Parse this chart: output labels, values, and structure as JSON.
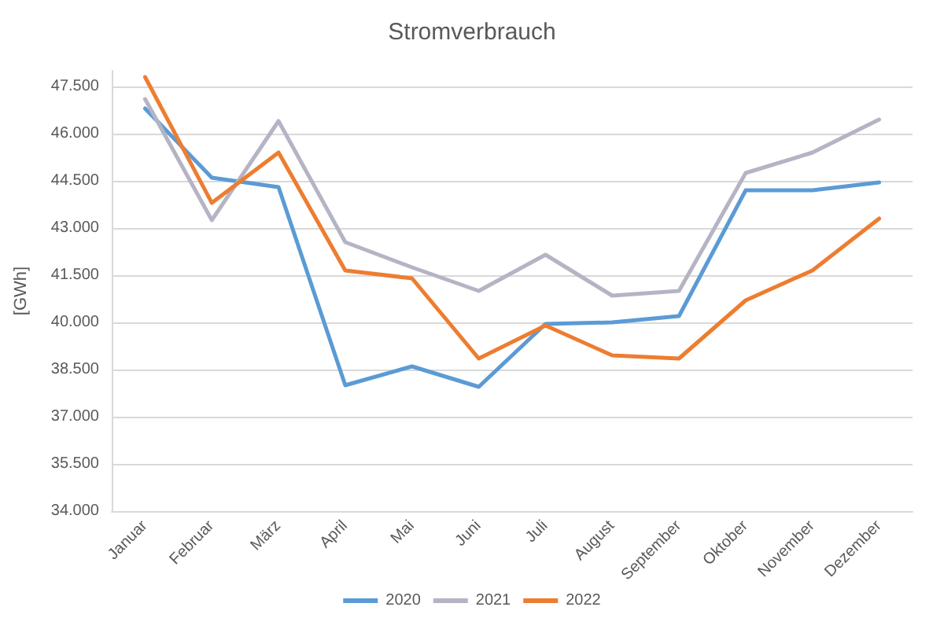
{
  "chart_data": {
    "type": "line",
    "title": "Stromverbrauch",
    "ylabel": "[GWh]",
    "categories": [
      "Januar",
      "Februar",
      "März",
      "April",
      "Mai",
      "Juni",
      "Juli",
      "August",
      "September",
      "Oktober",
      "November",
      "Dezember"
    ],
    "series": [
      {
        "name": "2020",
        "color": "#5b9bd5",
        "values": [
          46800,
          44600,
          44300,
          38000,
          38600,
          37950,
          39950,
          40000,
          40200,
          44200,
          44200,
          44450
        ]
      },
      {
        "name": "2021",
        "color": "#b4b4c4",
        "values": [
          47100,
          43250,
          46400,
          42550,
          41750,
          41000,
          42150,
          40850,
          41000,
          44750,
          45400,
          46450
        ]
      },
      {
        "name": "2022",
        "color": "#ed7d31",
        "values": [
          47800,
          43800,
          45400,
          41650,
          41400,
          38850,
          39900,
          38950,
          38850,
          40700,
          41650,
          43300
        ]
      }
    ],
    "ylim": [
      34000,
      48000
    ],
    "yticks": [
      {
        "value": 34000,
        "label": "34.000"
      },
      {
        "value": 35500,
        "label": "35.500"
      },
      {
        "value": 37000,
        "label": "37.000"
      },
      {
        "value": 38500,
        "label": "38.500"
      },
      {
        "value": 40000,
        "label": "40.000"
      },
      {
        "value": 41500,
        "label": "41.500"
      },
      {
        "value": 43000,
        "label": "43.000"
      },
      {
        "value": 44500,
        "label": "44.500"
      },
      {
        "value": 46000,
        "label": "46.000"
      },
      {
        "value": 47500,
        "label": "47.500"
      }
    ],
    "grid": "y",
    "legend": "bottom",
    "marker": "none",
    "line_style": "solid"
  }
}
